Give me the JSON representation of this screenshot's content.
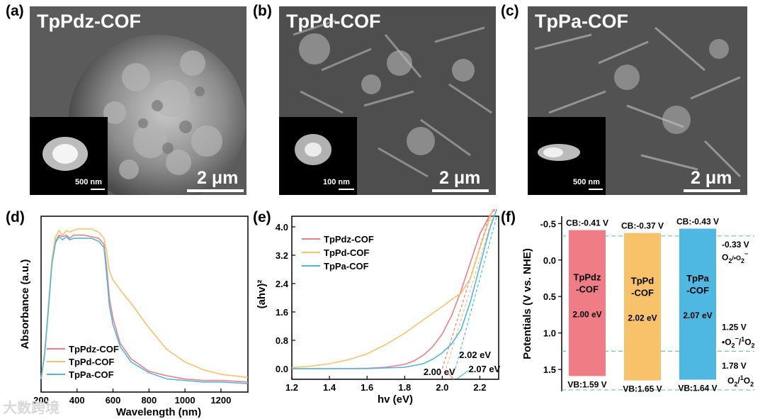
{
  "colors": {
    "tppdz": "#f07d86",
    "tppd": "#f7c26a",
    "tppa": "#4fb8e2",
    "dashed": "#6ac99f"
  },
  "panels": {
    "a": {
      "label": "(a)",
      "title": "TpPdz-COF",
      "scale_main": "2 μm",
      "scale_inset": "500 nm"
    },
    "b": {
      "label": "(b)",
      "title": "TpPd-COF",
      "scale_main": "2 μm",
      "scale_inset": "100 nm"
    },
    "c": {
      "label": "(c)",
      "title": "TpPa-COF",
      "scale_main": "2 μm",
      "scale_inset": "500 nm"
    },
    "d": {
      "label": "(d)"
    },
    "e": {
      "label": "(e)"
    },
    "f": {
      "label": "(f)"
    }
  },
  "watermark": "大数跨境",
  "chart_data": [
    {
      "panel": "d",
      "type": "line",
      "xlabel": "Wavelength (nm)",
      "ylabel": "Absorbance (a.u.)",
      "xlim": [
        200,
        1350
      ],
      "xticks": [
        200,
        400,
        600,
        800,
        1000,
        1200
      ],
      "yticks_shown": false,
      "legend_position": "bottom-left",
      "series": [
        {
          "name": "TpPdz-COF",
          "color_key": "tppdz",
          "x": [
            200,
            220,
            240,
            260,
            280,
            300,
            320,
            340,
            360,
            380,
            400,
            440,
            480,
            520,
            550,
            565,
            580,
            600,
            640,
            700,
            800,
            900,
            1000,
            1100,
            1200,
            1350
          ],
          "y": [
            0.03,
            0.2,
            0.48,
            0.78,
            0.92,
            0.96,
            0.95,
            0.96,
            0.94,
            0.96,
            0.96,
            0.96,
            0.95,
            0.94,
            0.9,
            0.75,
            0.55,
            0.42,
            0.26,
            0.16,
            0.08,
            0.05,
            0.03,
            0.02,
            0.02,
            0.01
          ]
        },
        {
          "name": "TpPd-COF",
          "color_key": "tppd",
          "x": [
            200,
            220,
            240,
            260,
            280,
            300,
            320,
            340,
            360,
            380,
            400,
            440,
            480,
            520,
            550,
            565,
            580,
            600,
            650,
            700,
            800,
            900,
            1000,
            1100,
            1200,
            1350
          ],
          "y": [
            0.03,
            0.2,
            0.5,
            0.8,
            0.95,
            0.99,
            0.96,
            0.99,
            0.98,
            0.99,
            1.0,
            1.0,
            1.0,
            0.98,
            0.94,
            0.85,
            0.73,
            0.67,
            0.59,
            0.52,
            0.36,
            0.22,
            0.14,
            0.09,
            0.06,
            0.04
          ]
        },
        {
          "name": "TpPa-COF",
          "color_key": "tppa",
          "x": [
            200,
            220,
            240,
            260,
            280,
            300,
            320,
            340,
            360,
            380,
            400,
            440,
            480,
            520,
            550,
            565,
            580,
            600,
            640,
            700,
            800,
            900,
            1000,
            1100,
            1200,
            1350
          ],
          "y": [
            0.03,
            0.19,
            0.47,
            0.77,
            0.91,
            0.95,
            0.93,
            0.95,
            0.93,
            0.94,
            0.94,
            0.94,
            0.94,
            0.92,
            0.88,
            0.7,
            0.5,
            0.38,
            0.24,
            0.14,
            0.07,
            0.03,
            0.02,
            0.01,
            0.01,
            0.0
          ]
        }
      ]
    },
    {
      "panel": "e",
      "type": "line",
      "xlabel": "hv (eV)",
      "ylabel": "(ahv)²",
      "xlim": [
        1.2,
        2.3
      ],
      "ylim": [
        -0.3,
        4.3
      ],
      "xticks": [
        1.2,
        1.4,
        1.6,
        1.8,
        2.0,
        2.2
      ],
      "yticks": [
        0.0,
        0.8,
        1.6,
        2.4,
        3.2,
        4.0
      ],
      "legend_position": "top-left",
      "series": [
        {
          "name": "TpPdz-COF",
          "color_key": "tppdz",
          "x": [
            1.2,
            1.4,
            1.6,
            1.7,
            1.8,
            1.85,
            1.9,
            1.95,
            2.0,
            2.05,
            2.1,
            2.15,
            2.2,
            2.25,
            2.28
          ],
          "y": [
            0.0,
            0.0,
            0.01,
            0.04,
            0.12,
            0.22,
            0.38,
            0.62,
            0.98,
            1.5,
            2.2,
            3.0,
            3.8,
            4.3,
            4.5
          ]
        },
        {
          "name": "TpPd-COF",
          "color_key": "tppd",
          "x": [
            1.2,
            1.3,
            1.4,
            1.5,
            1.6,
            1.7,
            1.8,
            1.9,
            2.0,
            2.05,
            2.1,
            2.15,
            2.2,
            2.25,
            2.27
          ],
          "y": [
            0.03,
            0.07,
            0.14,
            0.25,
            0.42,
            0.68,
            1.0,
            1.38,
            1.75,
            1.95,
            2.13,
            2.55,
            3.4,
            4.2,
            4.5
          ]
        },
        {
          "name": "TpPa-COF",
          "color_key": "tppa",
          "x": [
            1.2,
            1.4,
            1.6,
            1.8,
            1.9,
            1.95,
            2.0,
            2.05,
            2.1,
            2.15,
            2.2,
            2.25,
            2.29
          ],
          "y": [
            0.0,
            0.0,
            0.0,
            0.04,
            0.14,
            0.27,
            0.45,
            0.7,
            1.1,
            1.9,
            2.9,
            3.9,
            4.5
          ]
        }
      ],
      "tangent_lines": [
        {
          "color_key": "tppdz",
          "x": [
            2.0,
            2.25
          ],
          "y": [
            0.0,
            4.3
          ]
        },
        {
          "color_key": "tppd",
          "x": [
            2.02,
            2.27
          ],
          "y": [
            0.0,
            4.3
          ]
        },
        {
          "color_key": "tppa",
          "x": [
            2.07,
            2.29
          ],
          "y": [
            0.0,
            4.3
          ]
        }
      ],
      "annotations": [
        {
          "text": "2.00 eV",
          "x": 1.9,
          "y": -0.08
        },
        {
          "text": "2.02 eV",
          "x": 2.09,
          "y": 0.4
        },
        {
          "text": "2.07 eV",
          "x": 2.14,
          "y": 0.0
        }
      ]
    },
    {
      "panel": "f",
      "type": "bar",
      "ylabel": "Potentials (V vs. NHE)",
      "ylim": [
        -0.6,
        1.8
      ],
      "y_inverted": true,
      "yticks": [
        -0.5,
        0.0,
        0.5,
        1.0,
        1.5
      ],
      "categories": [
        "TpPdz-COF",
        "TpPd-COF",
        "TpPa-COF"
      ],
      "bars": [
        {
          "label_top": "TpPdz",
          "label_bottom": "-COF",
          "gap": "2.00 eV",
          "cb": -0.41,
          "vb": 1.59,
          "cb_text": "CB:-0.41 V",
          "vb_text": "VB:1.59 V",
          "color_key": "tppdz"
        },
        {
          "label_top": "TpPd",
          "label_bottom": "-COF",
          "gap": "2.02 eV",
          "cb": -0.37,
          "vb": 1.65,
          "cb_text": "CB:-0.37 V",
          "vb_text": "VB:1.65 V",
          "color_key": "tppd"
        },
        {
          "label_top": "TpPa",
          "label_bottom": "-COF",
          "gap": "2.07 eV",
          "cb": -0.43,
          "vb": 1.64,
          "cb_text": "CB:-0.43 V",
          "vb_text": "VB:1.64 V",
          "color_key": "tppa"
        }
      ],
      "reference_levels": [
        {
          "value": -0.33,
          "text_value": "-0.33 V",
          "couple_main": "O",
          "couple_sub": "2",
          "couple_rest": "/•O",
          "couple_sub2": "2",
          "couple_sup": "−"
        },
        {
          "value": 1.25,
          "text_value": "1.25 V",
          "couple_main": "•O",
          "couple_sub": "2",
          "couple_sup": "−",
          "couple_rest": "/",
          "couple_sup2": "1",
          "couple_end": "O",
          "couple_sub2": "2"
        },
        {
          "value": 1.78,
          "text_value": "1.78 V",
          "couple_main": "O",
          "couple_sub": "2",
          "couple_rest": "/",
          "couple_sup": "1",
          "couple_end": "O",
          "couple_sub2": "2"
        }
      ]
    }
  ]
}
